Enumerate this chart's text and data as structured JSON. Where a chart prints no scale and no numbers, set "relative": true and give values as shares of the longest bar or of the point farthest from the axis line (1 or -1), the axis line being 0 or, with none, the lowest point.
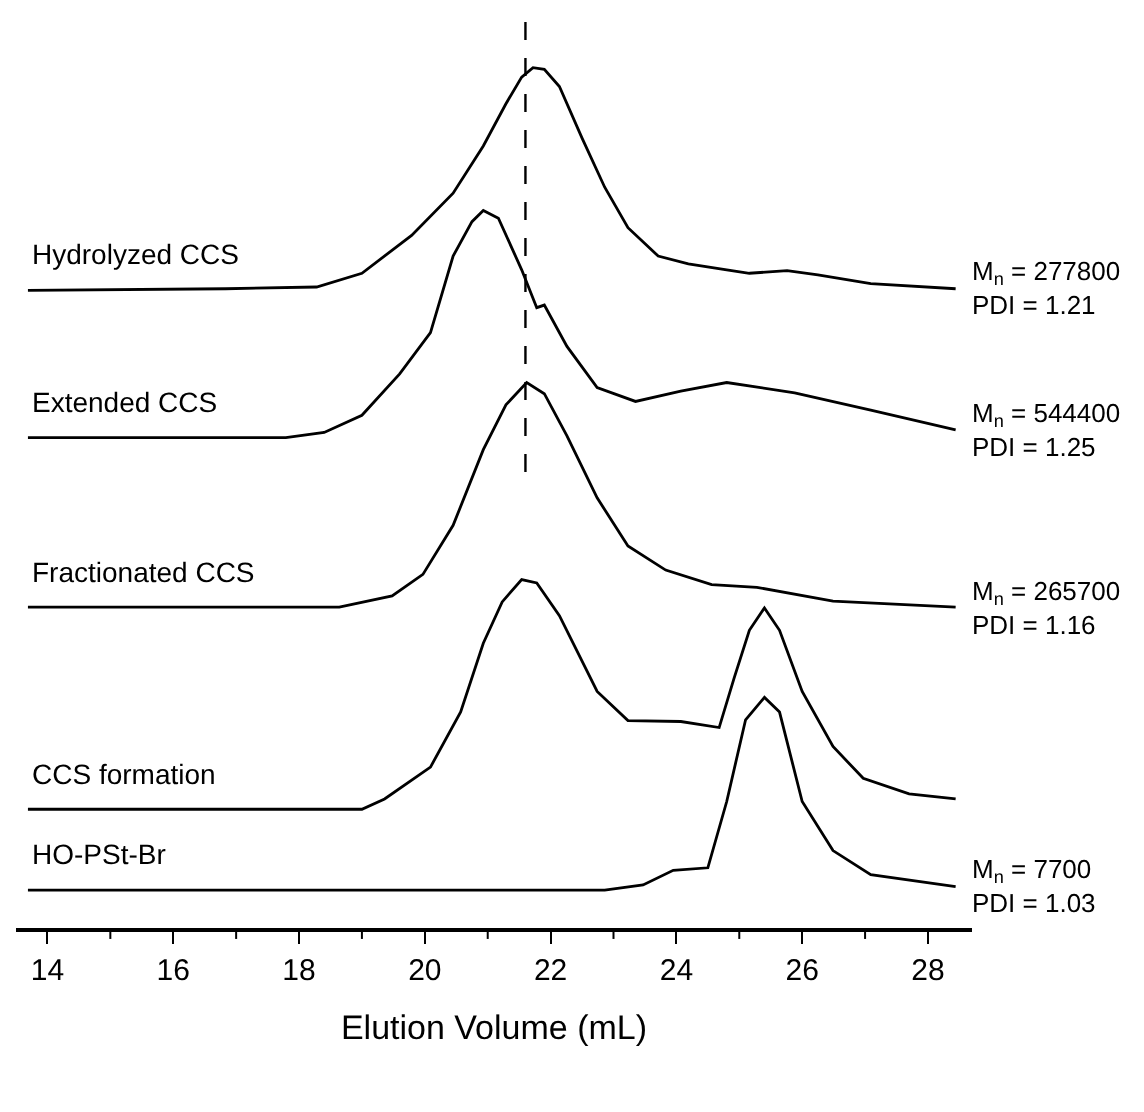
{
  "chart_data": {
    "type": "line",
    "relative": true,
    "xlabel": "Elution Volume (mL)",
    "xlim": [
      13.5,
      28.7
    ],
    "xticks": [
      14,
      {
        "value": 15,
        "label": null
      },
      16,
      {
        "value": 17,
        "label": null
      },
      18,
      {
        "value": 19,
        "label": null
      },
      20,
      {
        "value": 21,
        "label": null
      },
      22,
      {
        "value": 23,
        "label": null
      },
      24,
      {
        "value": 25,
        "label": null
      },
      26,
      {
        "value": 27,
        "label": null
      },
      28
    ],
    "legend": false,
    "marker": "none",
    "line_style": "solid",
    "series": [
      {
        "name": "Hydrolyzed CCS",
        "color": "#000000",
        "x": [
          13.69,
          16.83,
          18.28,
          19.0,
          19.79,
          20.45,
          20.93,
          21.29,
          21.54,
          21.72,
          21.9,
          22.14,
          22.5,
          22.86,
          23.23,
          23.71,
          24.19,
          24.8,
          25.16,
          25.76,
          26.25,
          27.09,
          28.44
        ],
        "values": [
          0.741,
          0.743,
          0.745,
          0.761,
          0.805,
          0.854,
          0.909,
          0.958,
          0.989,
          1.0,
          0.998,
          0.978,
          0.918,
          0.861,
          0.814,
          0.781,
          0.772,
          0.765,
          0.761,
          0.764,
          0.759,
          0.749,
          0.743
        ]
      },
      {
        "name": "Extended CCS",
        "color": "#000000",
        "x": [
          13.69,
          17.79,
          18.4,
          19.0,
          19.6,
          20.09,
          20.45,
          20.75,
          20.93,
          21.17,
          21.54,
          21.78,
          21.9,
          22.26,
          22.74,
          23.35,
          24.07,
          24.8,
          25.88,
          27.09,
          28.44
        ],
        "values": [
          0.57,
          0.57,
          0.576,
          0.596,
          0.644,
          0.692,
          0.781,
          0.821,
          0.834,
          0.825,
          0.765,
          0.721,
          0.724,
          0.676,
          0.628,
          0.612,
          0.624,
          0.634,
          0.622,
          0.602,
          0.579
        ]
      },
      {
        "name": "Fractionated CCS",
        "color": "#000000",
        "x": [
          13.69,
          18.64,
          19.48,
          19.97,
          20.45,
          20.93,
          21.29,
          21.62,
          21.9,
          22.26,
          22.74,
          23.23,
          23.83,
          24.56,
          25.28,
          26.49,
          28.44
        ],
        "values": [
          0.373,
          0.373,
          0.386,
          0.411,
          0.468,
          0.556,
          0.608,
          0.634,
          0.621,
          0.572,
          0.5,
          0.444,
          0.416,
          0.399,
          0.396,
          0.38,
          0.373
        ]
      },
      {
        "name": "CCS formation",
        "color": "#000000",
        "x": [
          13.69,
          19.0,
          19.36,
          20.09,
          20.57,
          20.93,
          21.23,
          21.54,
          21.78,
          22.14,
          22.74,
          23.23,
          24.07,
          24.68,
          24.92,
          25.16,
          25.4,
          25.64,
          26.0,
          26.49,
          26.97,
          27.7,
          28.44
        ],
        "values": [
          0.138,
          0.138,
          0.15,
          0.187,
          0.251,
          0.331,
          0.379,
          0.405,
          0.401,
          0.363,
          0.275,
          0.241,
          0.24,
          0.233,
          0.291,
          0.346,
          0.372,
          0.346,
          0.275,
          0.211,
          0.174,
          0.156,
          0.15
        ]
      },
      {
        "name": "HO-PSt-Br",
        "color": "#000000",
        "x": [
          13.69,
          22.86,
          23.47,
          23.95,
          24.5,
          24.8,
          25.1,
          25.4,
          25.64,
          26.0,
          26.49,
          27.09,
          28.44
        ],
        "values": [
          0.044,
          0.044,
          0.05,
          0.067,
          0.07,
          0.147,
          0.242,
          0.268,
          0.251,
          0.147,
          0.09,
          0.062,
          0.048
        ]
      }
    ],
    "ref_lines": [
      {
        "axis": "x",
        "value": 21.6,
        "line_style": "dashed",
        "color": "#000000"
      }
    ],
    "annotations": [
      "M$_{n}$ = 277800\nPDI = 1.21",
      "M$_{n}$ = 544400\nPDI = 1.25",
      "M$_{n}$ = 265700\nPDI = 1.16",
      "M$_{n}$ = 7700\nPDI = 1.03"
    ]
  }
}
